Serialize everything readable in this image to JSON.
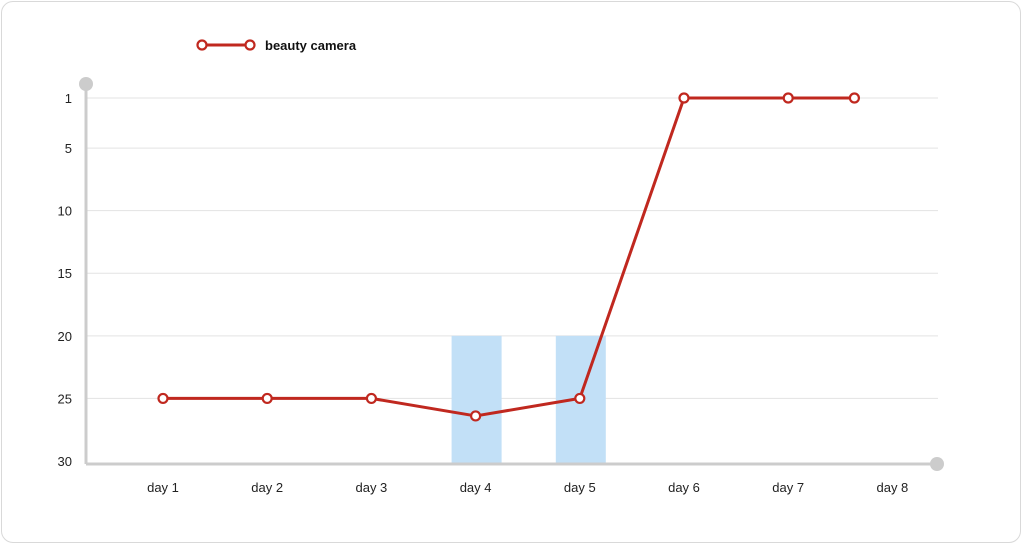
{
  "chart_data": {
    "type": "line",
    "title": "",
    "xlabel": "",
    "ylabel": "",
    "categories": [
      "day 1",
      "day 2",
      "day 3",
      "day 4",
      "day 5",
      "day 6",
      "day 7",
      "day 8"
    ],
    "y_ticks": [
      1,
      5,
      10,
      15,
      20,
      25,
      30
    ],
    "ylim": [
      1,
      30
    ],
    "y_axis_inverted": true,
    "grid": true,
    "legend_position": "top-left",
    "series": [
      {
        "name": "beauty camera",
        "color": "#c0281f",
        "values": [
          25,
          25,
          25,
          26.4,
          25,
          1,
          1,
          1
        ]
      }
    ],
    "highlight_bars": [
      {
        "category": "day 4",
        "from": 20,
        "to": 30,
        "color": "#c2e0f7"
      },
      {
        "category": "day 5",
        "from": 20,
        "to": 30,
        "color": "#c2e0f7"
      }
    ],
    "axis_color": "#cccccc",
    "grid_color": "#e3e3e3"
  }
}
